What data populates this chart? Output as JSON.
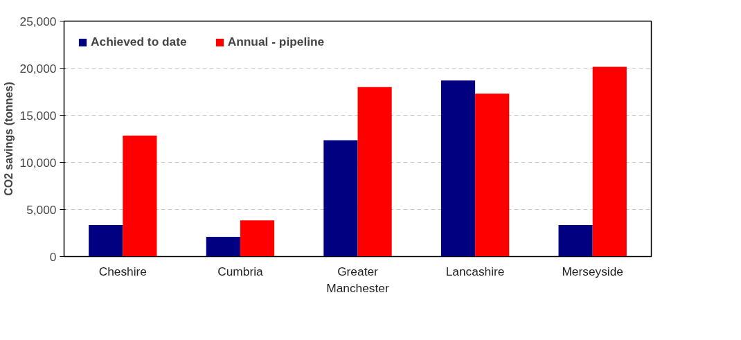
{
  "chart_data": {
    "type": "bar",
    "categories": [
      "Cheshire",
      "Cumbria",
      "Greater Manchester",
      "Lancashire",
      "Merseyside"
    ],
    "series": [
      {
        "name": "Achieved to date",
        "color": "#000080",
        "values": [
          3350,
          2100,
          12350,
          18700,
          3350
        ]
      },
      {
        "name": "Annual - pipeline",
        "color": "#ff0000",
        "values": [
          12850,
          3850,
          18000,
          17300,
          20150
        ]
      }
    ],
    "ylabel": "CO2 savings (tonnes)",
    "ylim": [
      0,
      25000
    ],
    "yticks": [
      {
        "value": 0,
        "label": "0"
      },
      {
        "value": 5000,
        "label": "5,000"
      },
      {
        "value": 10000,
        "label": "10,000"
      },
      {
        "value": 15000,
        "label": "15,000"
      },
      {
        "value": 20000,
        "label": "20,000"
      },
      {
        "value": 25000,
        "label": "25,000"
      }
    ],
    "grid": "y",
    "legend": "top left"
  }
}
